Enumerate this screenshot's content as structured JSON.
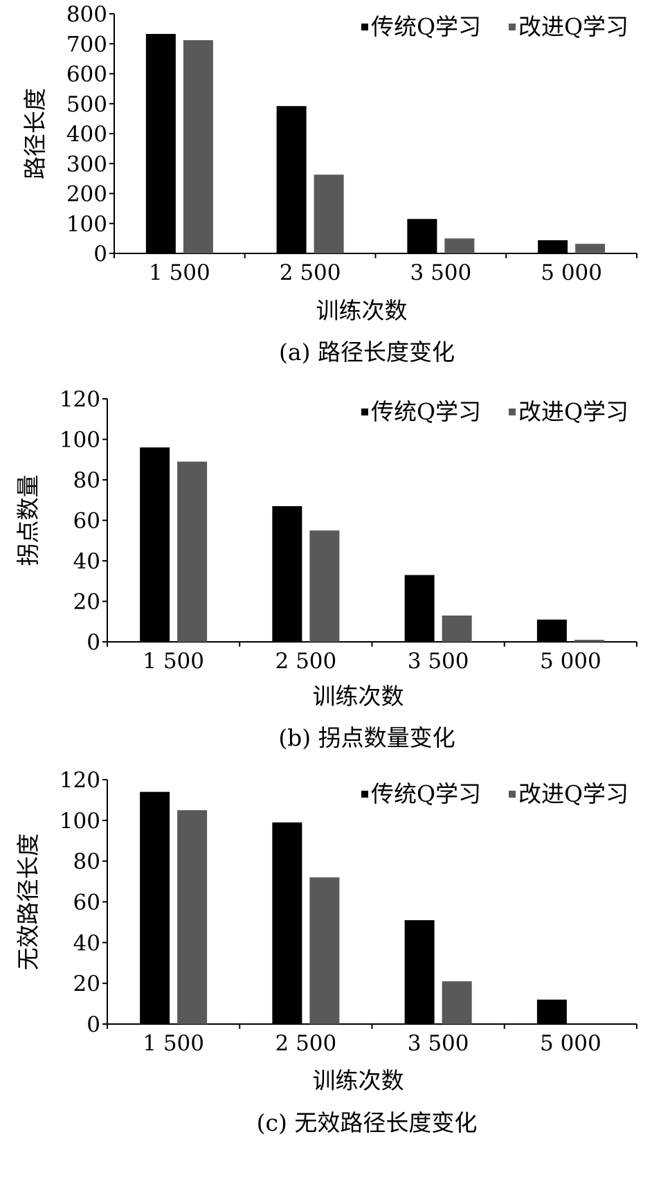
{
  "legend": {
    "series_1": "传统Q学习",
    "series_2": "改进Q学习"
  },
  "colors": {
    "series_1": "#000000",
    "series_2": "#595959",
    "axis": "#000000"
  },
  "chart_data": [
    {
      "type": "bar",
      "caption": "(a) 路径长度变化",
      "xlabel": "训练次数",
      "ylabel": "路径长度",
      "categories": [
        "1 500",
        "2 500",
        "3 500",
        "5 000"
      ],
      "ylim": [
        0,
        800
      ],
      "yticks": [
        0,
        100,
        200,
        300,
        400,
        500,
        600,
        700,
        800
      ],
      "legend_position": "top-right",
      "grid": false,
      "series": [
        {
          "name": "传统Q学习",
          "values": [
            733,
            492,
            115,
            44
          ]
        },
        {
          "name": "改进Q学习",
          "values": [
            712,
            263,
            50,
            32
          ]
        }
      ]
    },
    {
      "type": "bar",
      "caption": "(b) 拐点数量变化",
      "xlabel": "训练次数",
      "ylabel": "拐点数量",
      "categories": [
        "1 500",
        "2 500",
        "3 500",
        "5 000"
      ],
      "ylim": [
        0,
        120
      ],
      "yticks": [
        0,
        20,
        40,
        60,
        80,
        100,
        120
      ],
      "legend_position": "top-right",
      "grid": false,
      "series": [
        {
          "name": "传统Q学习",
          "values": [
            96,
            67,
            33,
            11
          ]
        },
        {
          "name": "改进Q学习",
          "values": [
            89,
            55,
            13,
            1
          ]
        }
      ]
    },
    {
      "type": "bar",
      "caption": "(c) 无效路径长度变化",
      "xlabel": "训练次数",
      "ylabel": "无效路径长度",
      "categories": [
        "1 500",
        "2 500",
        "3 500",
        "5 000"
      ],
      "ylim": [
        0,
        120
      ],
      "yticks": [
        0,
        20,
        40,
        60,
        80,
        100,
        120
      ],
      "legend_position": "top-right",
      "grid": false,
      "series": [
        {
          "name": "传统Q学习",
          "values": [
            114,
            99,
            51,
            12
          ]
        },
        {
          "name": "改进Q学习",
          "values": [
            105,
            72,
            21,
            0
          ]
        }
      ]
    }
  ]
}
